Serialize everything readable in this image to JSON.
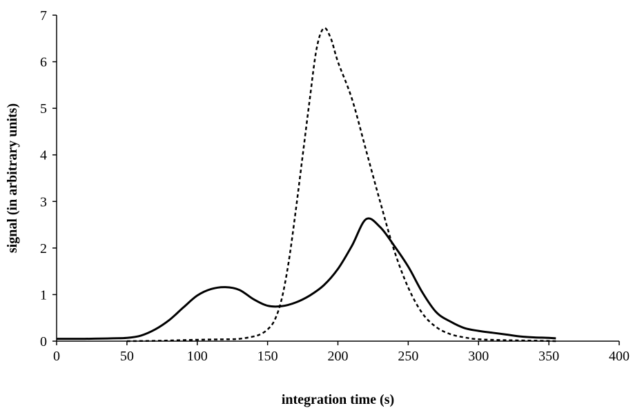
{
  "chart_data": {
    "type": "line",
    "title": "",
    "xlabel": "integration time (s)",
    "ylabel": "signal (in arbitrary units)",
    "xlim": [
      0,
      400
    ],
    "ylim": [
      0,
      7
    ],
    "xticks": [
      0,
      50,
      100,
      150,
      200,
      250,
      300,
      350,
      400
    ],
    "yticks": [
      0,
      1,
      2,
      3,
      4,
      5,
      6,
      7
    ],
    "grid": false,
    "legend": "none",
    "series": [
      {
        "style": "solid",
        "color": "#000000",
        "points": [
          [
            0,
            0.05
          ],
          [
            20,
            0.05
          ],
          [
            40,
            0.06
          ],
          [
            50,
            0.07
          ],
          [
            60,
            0.12
          ],
          [
            70,
            0.25
          ],
          [
            80,
            0.45
          ],
          [
            90,
            0.72
          ],
          [
            100,
            0.98
          ],
          [
            110,
            1.12
          ],
          [
            120,
            1.16
          ],
          [
            130,
            1.1
          ],
          [
            140,
            0.9
          ],
          [
            150,
            0.76
          ],
          [
            160,
            0.75
          ],
          [
            170,
            0.83
          ],
          [
            180,
            0.98
          ],
          [
            190,
            1.2
          ],
          [
            200,
            1.55
          ],
          [
            210,
            2.05
          ],
          [
            220,
            2.62
          ],
          [
            230,
            2.45
          ],
          [
            240,
            2.05
          ],
          [
            250,
            1.6
          ],
          [
            260,
            1.05
          ],
          [
            270,
            0.62
          ],
          [
            280,
            0.42
          ],
          [
            290,
            0.28
          ],
          [
            300,
            0.22
          ],
          [
            310,
            0.18
          ],
          [
            320,
            0.14
          ],
          [
            330,
            0.1
          ],
          [
            340,
            0.08
          ],
          [
            350,
            0.07
          ],
          [
            355,
            0.06
          ]
        ]
      },
      {
        "style": "dotted",
        "color": "#000000",
        "points": [
          [
            50,
            0.0
          ],
          [
            75,
            0.01
          ],
          [
            100,
            0.03
          ],
          [
            120,
            0.04
          ],
          [
            130,
            0.05
          ],
          [
            140,
            0.1
          ],
          [
            145,
            0.15
          ],
          [
            150,
            0.25
          ],
          [
            155,
            0.45
          ],
          [
            160,
            0.9
          ],
          [
            165,
            1.7
          ],
          [
            170,
            2.8
          ],
          [
            175,
            4.0
          ],
          [
            180,
            5.2
          ],
          [
            185,
            6.3
          ],
          [
            190,
            6.72
          ],
          [
            195,
            6.5
          ],
          [
            200,
            6.0
          ],
          [
            210,
            5.2
          ],
          [
            220,
            4.1
          ],
          [
            230,
            3.0
          ],
          [
            240,
            1.95
          ],
          [
            250,
            1.15
          ],
          [
            260,
            0.6
          ],
          [
            270,
            0.3
          ],
          [
            280,
            0.15
          ],
          [
            290,
            0.08
          ],
          [
            300,
            0.04
          ],
          [
            320,
            0.02
          ],
          [
            340,
            0.01
          ],
          [
            355,
            0.0
          ]
        ]
      }
    ]
  }
}
